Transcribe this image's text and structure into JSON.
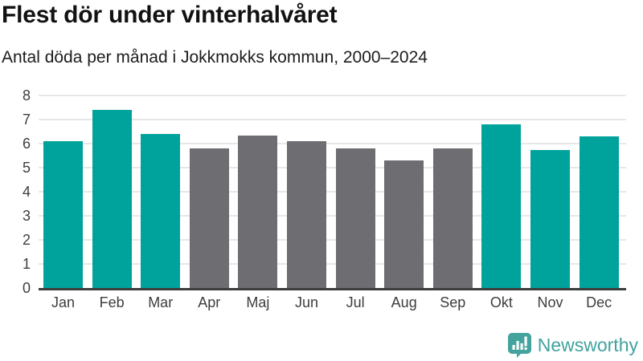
{
  "header": {
    "title": "Flest dör under vinterhalvåret",
    "subtitle": "Antal döda per månad i Jokkmokks kommun, 2000–2024"
  },
  "chart_data": {
    "type": "bar",
    "title": "Flest dör under vinterhalvåret",
    "subtitle": "Antal döda per månad i Jokkmokks kommun, 2000–2024",
    "categories": [
      "Jan",
      "Feb",
      "Mar",
      "Apr",
      "Maj",
      "Jun",
      "Jul",
      "Aug",
      "Sep",
      "Okt",
      "Nov",
      "Dec"
    ],
    "values": [
      6.1,
      7.4,
      6.4,
      5.8,
      6.35,
      6.1,
      5.8,
      5.3,
      5.8,
      6.8,
      5.75,
      6.3
    ],
    "highlighted": [
      true,
      true,
      true,
      false,
      false,
      false,
      false,
      false,
      false,
      true,
      true,
      true
    ],
    "xlabel": "",
    "ylabel": "",
    "ylim": [
      0,
      8
    ],
    "yticks": [
      0,
      1,
      2,
      3,
      4,
      5,
      6,
      7,
      8
    ],
    "grid": true,
    "legend": false,
    "colors": {
      "highlight": "#00a39b",
      "muted": "#6e6e72",
      "gridline": "#e7e7e7",
      "axis": "#3d3d3d",
      "tick_label": "#3d3d3d"
    }
  },
  "footer": {
    "brand": "Newsworthy",
    "brand_color": "#41a39d",
    "logo_icon": "bar-chart-speech-bubble"
  }
}
